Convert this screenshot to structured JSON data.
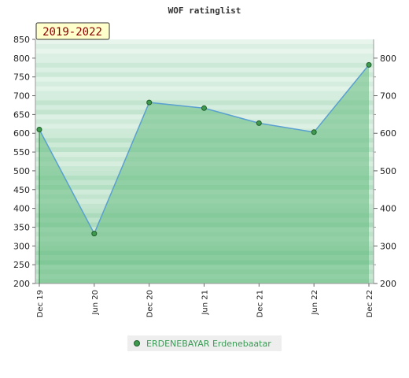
{
  "chart_data": {
    "type": "area",
    "title": "WOF ratinglist",
    "period_label": "2019-2022",
    "x": [
      "Dec 19",
      "Jun 20",
      "Dec 20",
      "Jun 21",
      "Dec 21",
      "Jun 22",
      "Dec 22"
    ],
    "series": [
      {
        "name": "ERDENEBAYAR Erdenebaatar",
        "values": [
          610,
          333,
          682,
          667,
          627,
          603,
          782
        ]
      }
    ],
    "ylim_left": [
      200,
      850
    ],
    "ylim_right": [
      200,
      850
    ],
    "yticks_left": [
      200,
      250,
      300,
      350,
      400,
      450,
      500,
      550,
      600,
      650,
      700,
      750,
      800,
      850
    ],
    "yticks_right": [
      200,
      300,
      400,
      500,
      600,
      700,
      800
    ],
    "grid": true,
    "legend_position": "bottom"
  },
  "colors": {
    "line": "#5aa0d0",
    "marker_fill": "#3d9a4e",
    "marker_stroke": "#1f5e2a",
    "fill": "#66bb80",
    "badge_bg": "#ffffcc"
  }
}
